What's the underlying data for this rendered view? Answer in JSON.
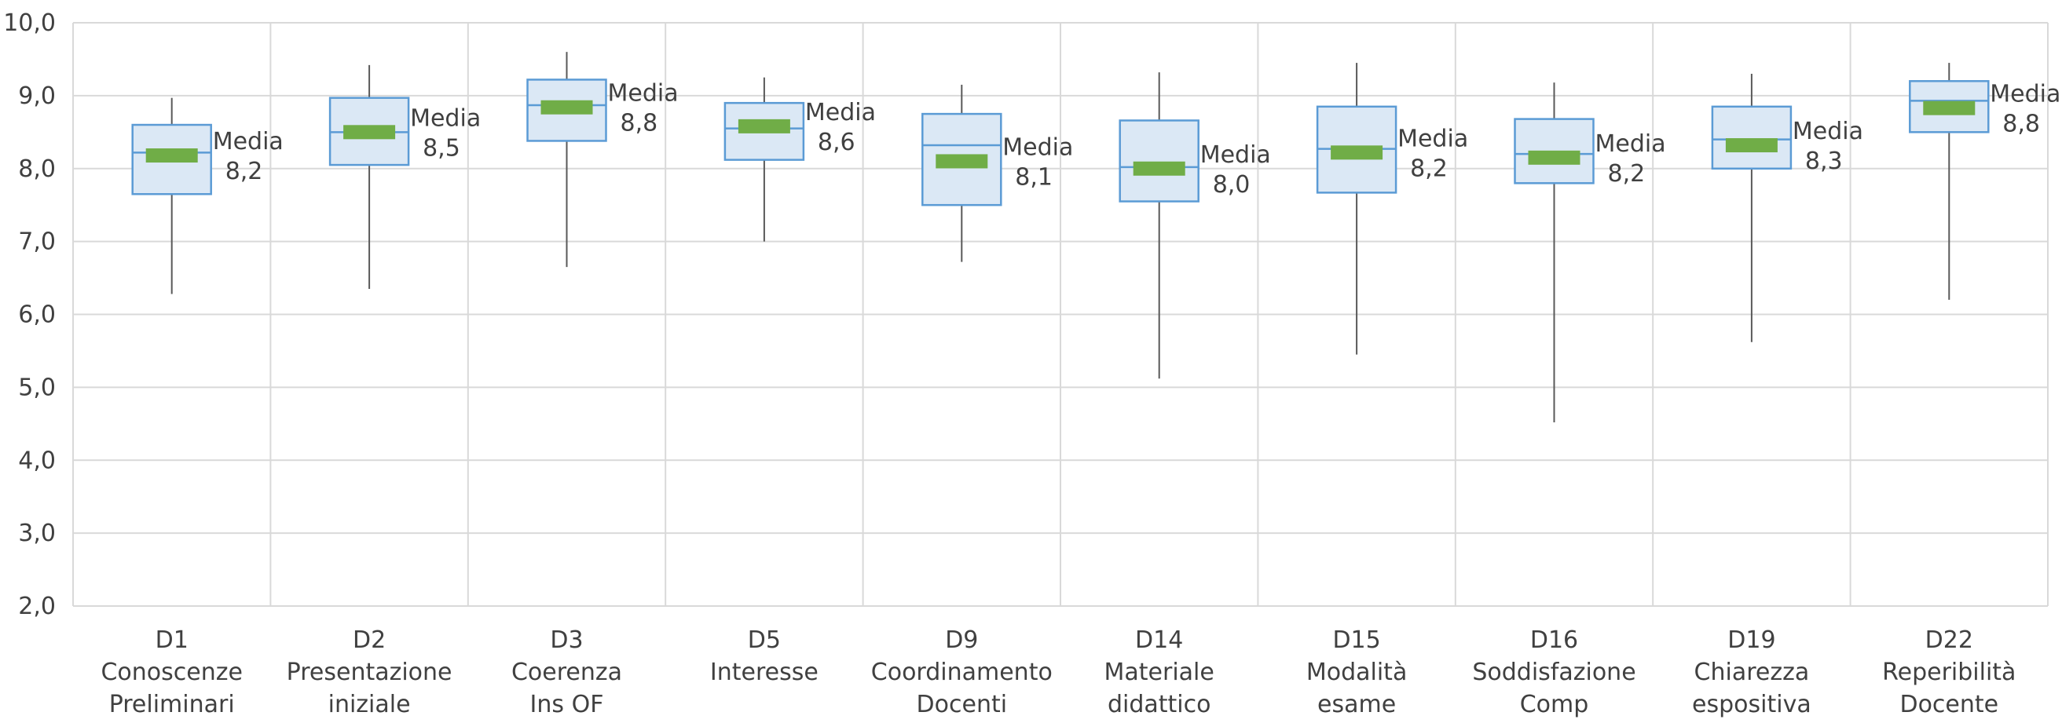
{
  "chart_data": {
    "type": "boxplot",
    "ylim": [
      2.0,
      10.0
    ],
    "y_ticks": [
      "2,0",
      "3,0",
      "4,0",
      "5,0",
      "6,0",
      "7,0",
      "8,0",
      "9,0",
      "10,0"
    ],
    "grid": true,
    "mean_label_text": "Media",
    "categories": [
      {
        "line1": "D1",
        "line2": "Conoscenze",
        "line3": "Preliminari",
        "min": 6.28,
        "q1": 7.65,
        "median": 8.22,
        "q3": 8.6,
        "max": 8.97,
        "mean": 8.18,
        "mean_label": "8,2"
      },
      {
        "line1": "D2",
        "line2": "Presentazione",
        "line3": "iniziale",
        "min": 6.35,
        "q1": 8.05,
        "median": 8.5,
        "q3": 8.97,
        "max": 9.42,
        "mean": 8.5,
        "mean_label": "8,5"
      },
      {
        "line1": "D3",
        "line2": "Coerenza",
        "line3": "Ins OF",
        "min": 6.65,
        "q1": 8.38,
        "median": 8.87,
        "q3": 9.22,
        "max": 9.6,
        "mean": 8.84,
        "mean_label": "8,8"
      },
      {
        "line1": "D5",
        "line2": "Interesse",
        "line3": "",
        "min": 7.0,
        "q1": 8.12,
        "median": 8.55,
        "q3": 8.9,
        "max": 9.25,
        "mean": 8.58,
        "mean_label": "8,6"
      },
      {
        "line1": "D9",
        "line2": "Coordinamento",
        "line3": "Docenti",
        "min": 6.72,
        "q1": 7.5,
        "median": 8.32,
        "q3": 8.75,
        "max": 9.15,
        "mean": 8.1,
        "mean_label": "8,1"
      },
      {
        "line1": "D14",
        "line2": "Materiale",
        "line3": "didattico",
        "min": 5.12,
        "q1": 7.55,
        "median": 8.02,
        "q3": 8.66,
        "max": 9.32,
        "mean": 8.0,
        "mean_label": "8,0"
      },
      {
        "line1": "D15",
        "line2": "Modalità",
        "line3": "esame",
        "min": 5.45,
        "q1": 7.67,
        "median": 8.27,
        "q3": 8.85,
        "max": 9.45,
        "mean": 8.22,
        "mean_label": "8,2"
      },
      {
        "line1": "D16",
        "line2": "Soddisfazione",
        "line3": "Comp",
        "min": 4.52,
        "q1": 7.8,
        "median": 8.2,
        "q3": 8.68,
        "max": 9.18,
        "mean": 8.15,
        "mean_label": "8,2"
      },
      {
        "line1": "D19",
        "line2": "Chiarezza",
        "line3": "espositiva",
        "min": 5.62,
        "q1": 8.0,
        "median": 8.4,
        "q3": 8.85,
        "max": 9.3,
        "mean": 8.32,
        "mean_label": "8,3"
      },
      {
        "line1": "D22",
        "line2": "Reperibilità",
        "line3": "Docente",
        "min": 6.2,
        "q1": 8.5,
        "median": 8.93,
        "q3": 9.2,
        "max": 9.45,
        "mean": 8.83,
        "mean_label": "8,8"
      }
    ],
    "colors": {
      "box_fill": "#dbe8f5",
      "box_stroke": "#5b9bd5",
      "whisker": "#595959",
      "mean_marker": "#70ad47",
      "grid": "#d9d9d9",
      "text": "#404040"
    }
  }
}
